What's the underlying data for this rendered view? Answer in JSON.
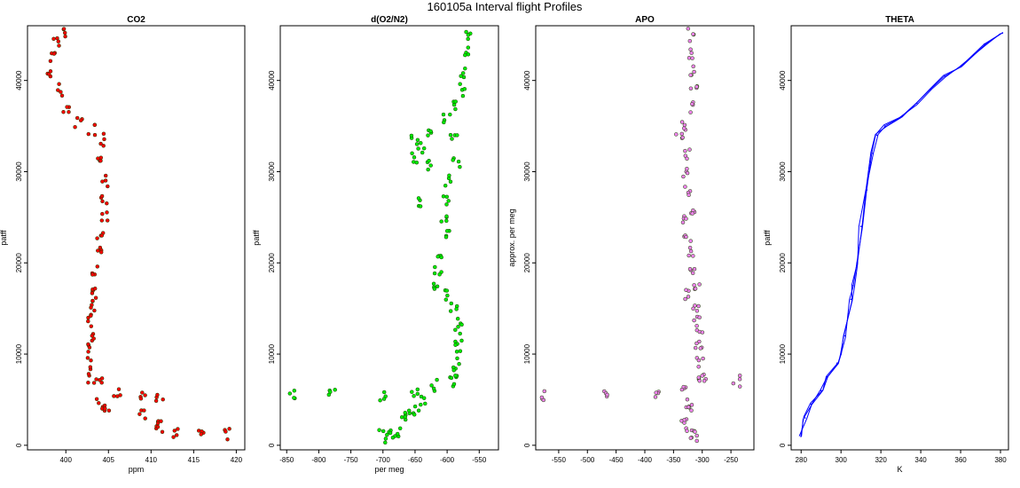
{
  "figure": {
    "title": "160105a   Interval flight Profiles"
  },
  "colors": {
    "co2": "#ff0000",
    "o2n2": "#00ee00",
    "apo": "#ee82ee",
    "theta": "#0000ff",
    "point_outline": "#1a3d00"
  },
  "chart_data": [
    {
      "type": "scatter",
      "title": "CO2",
      "xlabel": "ppm",
      "ylabel": "patff",
      "xlim": [
        395.5,
        421
      ],
      "ylim": [
        -500,
        46000
      ],
      "xticks": [
        400,
        405,
        410,
        415,
        420
      ],
      "yticks": [
        0,
        10000,
        20000,
        30000,
        40000
      ],
      "series": [
        {
          "color": "#ff0000",
          "points": [
            [
              400,
              45000
            ],
            [
              399,
              44000
            ],
            [
              398.5,
              42500
            ],
            [
              398,
              41000
            ],
            [
              399.5,
              39000
            ],
            [
              400,
              37000
            ],
            [
              401.5,
              35500
            ],
            [
              403,
              34500
            ],
            [
              404.5,
              33500
            ],
            [
              404,
              31000
            ],
            [
              404.5,
              29000
            ],
            [
              404.5,
              27000
            ],
            [
              404.5,
              25000
            ],
            [
              404,
              23000
            ],
            [
              404,
              21000
            ],
            [
              403.5,
              19000
            ],
            [
              403.5,
              17500
            ],
            [
              403.5,
              16500
            ],
            [
              403,
              15000
            ],
            [
              403,
              13500
            ],
            [
              403,
              12000
            ],
            [
              402.5,
              10500
            ],
            [
              402.5,
              9000
            ],
            [
              403,
              7500
            ],
            [
              404,
              7000
            ],
            [
              406,
              6000
            ],
            [
              409,
              5500
            ],
            [
              411,
              5500
            ],
            [
              404,
              4500
            ],
            [
              405,
              4000
            ],
            [
              409,
              3500
            ],
            [
              410.5,
              2500
            ],
            [
              411,
              2000
            ],
            [
              413,
              1500
            ],
            [
              416,
              1200
            ],
            [
              419,
              1300
            ]
          ]
        }
      ]
    },
    {
      "type": "scatter",
      "title": "d(O2/N2)",
      "xlabel": "per meg",
      "ylabel": "patff",
      "xlim": [
        -860,
        -520
      ],
      "ylim": [
        -500,
        46000
      ],
      "xticks": [
        -850,
        -800,
        -750,
        -700,
        -650,
        -600,
        -550
      ],
      "yticks": [
        0,
        10000,
        20000,
        30000,
        40000
      ],
      "series": [
        {
          "color": "#00ee00",
          "points": [
            [
              -565,
              45000
            ],
            [
              -570,
              43000
            ],
            [
              -575,
              41000
            ],
            [
              -578,
              39000
            ],
            [
              -585,
              37500
            ],
            [
              -600,
              36000
            ],
            [
              -630,
              34500
            ],
            [
              -650,
              33500
            ],
            [
              -640,
              32500
            ],
            [
              -650,
              31500
            ],
            [
              -625,
              30500
            ],
            [
              -590,
              33500
            ],
            [
              -585,
              31000
            ],
            [
              -600,
              29000
            ],
            [
              -600,
              27000
            ],
            [
              -640,
              26500
            ],
            [
              -605,
              25000
            ],
            [
              -600,
              23000
            ],
            [
              -610,
              21000
            ],
            [
              -615,
              19000
            ],
            [
              -618,
              17500
            ],
            [
              -600,
              16500
            ],
            [
              -590,
              15000
            ],
            [
              -583,
              13500
            ],
            [
              -582,
              12000
            ],
            [
              -585,
              10500
            ],
            [
              -585,
              9000
            ],
            [
              -590,
              8000
            ],
            [
              -595,
              7000
            ],
            [
              -620,
              6500
            ],
            [
              -650,
              5800
            ],
            [
              -700,
              5600
            ],
            [
              -780,
              5500
            ],
            [
              -840,
              5500
            ],
            [
              -640,
              4800
            ],
            [
              -650,
              4000
            ],
            [
              -660,
              3200
            ],
            [
              -670,
              2500
            ],
            [
              -690,
              1800
            ],
            [
              -700,
              1000
            ],
            [
              -680,
              800
            ]
          ]
        }
      ]
    },
    {
      "type": "scatter",
      "title": "APO",
      "xlabel": "",
      "ylabel": "approx. per meg",
      "xlim": [
        -590,
        -210
      ],
      "ylim": [
        -500,
        46000
      ],
      "xticks": [
        -550,
        -500,
        -450,
        -400,
        -350,
        -300,
        -250
      ],
      "yticks": [
        0,
        10000,
        20000,
        30000,
        40000
      ],
      "series": [
        {
          "color": "#ee82ee",
          "points": [
            [
              -320,
              45000
            ],
            [
              -322,
              43000
            ],
            [
              -318,
              41000
            ],
            [
              -315,
              39000
            ],
            [
              -320,
              37000
            ],
            [
              -330,
              35000
            ],
            [
              -340,
              34000
            ],
            [
              -325,
              32000
            ],
            [
              -330,
              30000
            ],
            [
              -325,
              28000
            ],
            [
              -320,
              26000
            ],
            [
              -330,
              25000
            ],
            [
              -325,
              23000
            ],
            [
              -320,
              21000
            ],
            [
              -318,
              19000
            ],
            [
              -310,
              17500
            ],
            [
              -325,
              16500
            ],
            [
              -312,
              15000
            ],
            [
              -308,
              13500
            ],
            [
              -305,
              12000
            ],
            [
              -305,
              10500
            ],
            [
              -303,
              9000
            ],
            [
              -300,
              7500
            ],
            [
              -310,
              7000
            ],
            [
              -330,
              6200
            ],
            [
              -380,
              5600
            ],
            [
              -470,
              5500
            ],
            [
              -580,
              5500
            ],
            [
              -240,
              7000
            ],
            [
              -320,
              4500
            ],
            [
              -325,
              3500
            ],
            [
              -330,
              2500
            ],
            [
              -320,
              1500
            ],
            [
              -315,
              800
            ]
          ]
        }
      ]
    },
    {
      "type": "line",
      "title": "THETA",
      "xlabel": "K",
      "ylabel": "patff",
      "xlim": [
        275,
        384
      ],
      "ylim": [
        -500,
        46000
      ],
      "xticks": [
        280,
        300,
        320,
        340,
        360,
        380
      ],
      "yticks": [
        0,
        10000,
        20000,
        30000,
        40000
      ],
      "series": [
        {
          "color": "#0000ff",
          "points": [
            [
              280,
              1000
            ],
            [
              282,
              3000
            ],
            [
              285,
              4500
            ],
            [
              290,
              6000
            ],
            [
              293,
              7500
            ],
            [
              298,
              9000
            ],
            [
              300,
              10000
            ],
            [
              302,
              12000
            ],
            [
              305,
              16000
            ],
            [
              306,
              17500
            ],
            [
              308,
              20000
            ],
            [
              310,
              24000
            ],
            [
              313,
              28000
            ],
            [
              316,
              32000
            ],
            [
              318,
              34000
            ],
            [
              322,
              35000
            ],
            [
              330,
              36000
            ],
            [
              338,
              37500
            ],
            [
              345,
              39000
            ],
            [
              352,
              40500
            ],
            [
              360,
              41500
            ],
            [
              372,
              44000
            ],
            [
              381,
              45200
            ]
          ]
        }
      ]
    }
  ]
}
